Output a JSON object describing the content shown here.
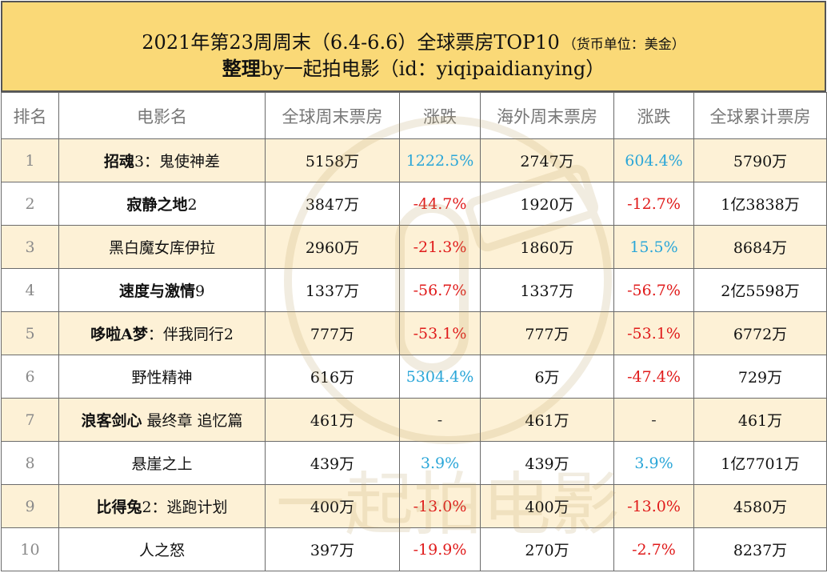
{
  "header": {
    "line1": "2021年第23周周末（6.4-6.6）全球票房TOP10",
    "unit_note": "（货币单位：美金）",
    "line2_bold": "整理",
    "line2_rest": "by一起拍电影（id：yiqipaidianying）"
  },
  "table": {
    "columns": [
      "排名",
      "电影名",
      "全球周末票房",
      "涨跌",
      "海外周末票房",
      "涨跌",
      "全球累计票房"
    ],
    "rows": [
      {
        "rank": "1",
        "title_bold": "招魂",
        "title_rest": "3：鬼使神差",
        "global_weekend": "5158万",
        "global_change": "1222.5%",
        "global_dir": "pos",
        "overseas_weekend": "2747万",
        "overseas_change": "604.4%",
        "overseas_dir": "pos",
        "cumulative": "5790万"
      },
      {
        "rank": "2",
        "title_bold": "寂静之地",
        "title_rest": "2",
        "global_weekend": "3847万",
        "global_change": "-44.7%",
        "global_dir": "neg",
        "overseas_weekend": "1920万",
        "overseas_change": "-12.7%",
        "overseas_dir": "neg",
        "cumulative": "1亿3838万"
      },
      {
        "rank": "3",
        "title_bold": "",
        "title_rest": "黑白魔女库伊拉",
        "global_weekend": "2960万",
        "global_change": "-21.3%",
        "global_dir": "neg",
        "overseas_weekend": "1860万",
        "overseas_change": "15.5%",
        "overseas_dir": "pos",
        "cumulative": "8684万"
      },
      {
        "rank": "4",
        "title_bold": "速度与激情",
        "title_rest": "9",
        "global_weekend": "1337万",
        "global_change": "-56.7%",
        "global_dir": "neg",
        "overseas_weekend": "1337万",
        "overseas_change": "-56.7%",
        "overseas_dir": "neg",
        "cumulative": "2亿5598万"
      },
      {
        "rank": "5",
        "title_bold": "哆啦A梦",
        "title_rest": "：伴我同行2",
        "global_weekend": "777万",
        "global_change": "-53.1%",
        "global_dir": "neg",
        "overseas_weekend": "777万",
        "overseas_change": "-53.1%",
        "overseas_dir": "neg",
        "cumulative": "6772万"
      },
      {
        "rank": "6",
        "title_bold": "",
        "title_rest": "野性精神",
        "global_weekend": "616万",
        "global_change": "5304.4%",
        "global_dir": "pos",
        "overseas_weekend": "6万",
        "overseas_change": "-47.4%",
        "overseas_dir": "neg",
        "cumulative": "729万"
      },
      {
        "rank": "7",
        "title_bold": "浪客剑心",
        "title_rest": " 最终章 追忆篇",
        "global_weekend": "461万",
        "global_change": "-",
        "global_dir": "na",
        "overseas_weekend": "461万",
        "overseas_change": "-",
        "overseas_dir": "na",
        "cumulative": "461万"
      },
      {
        "rank": "8",
        "title_bold": "",
        "title_rest": "悬崖之上",
        "global_weekend": "439万",
        "global_change": "3.9%",
        "global_dir": "pos",
        "overseas_weekend": "439万",
        "overseas_change": "3.9%",
        "overseas_dir": "pos",
        "cumulative": "1亿7701万"
      },
      {
        "rank": "9",
        "title_bold": "比得兔",
        "title_rest": "2：逃跑计划",
        "global_weekend": "400万",
        "global_change": "-13.0%",
        "global_dir": "neg",
        "overseas_weekend": "400万",
        "overseas_change": "-13.0%",
        "overseas_dir": "neg",
        "cumulative": "4580万"
      },
      {
        "rank": "10",
        "title_bold": "",
        "title_rest": "人之怒",
        "global_weekend": "397万",
        "global_change": "-19.9%",
        "global_dir": "neg",
        "overseas_weekend": "270万",
        "overseas_change": "-2.7%",
        "overseas_dir": "neg",
        "cumulative": "8237万"
      }
    ]
  },
  "watermark": {
    "text": "一起拍电影"
  },
  "colors": {
    "header_bg": "#fad977",
    "row_highlight": "#fdf1d6",
    "positive": "#2aa6d8",
    "negative": "#e01b1b"
  }
}
